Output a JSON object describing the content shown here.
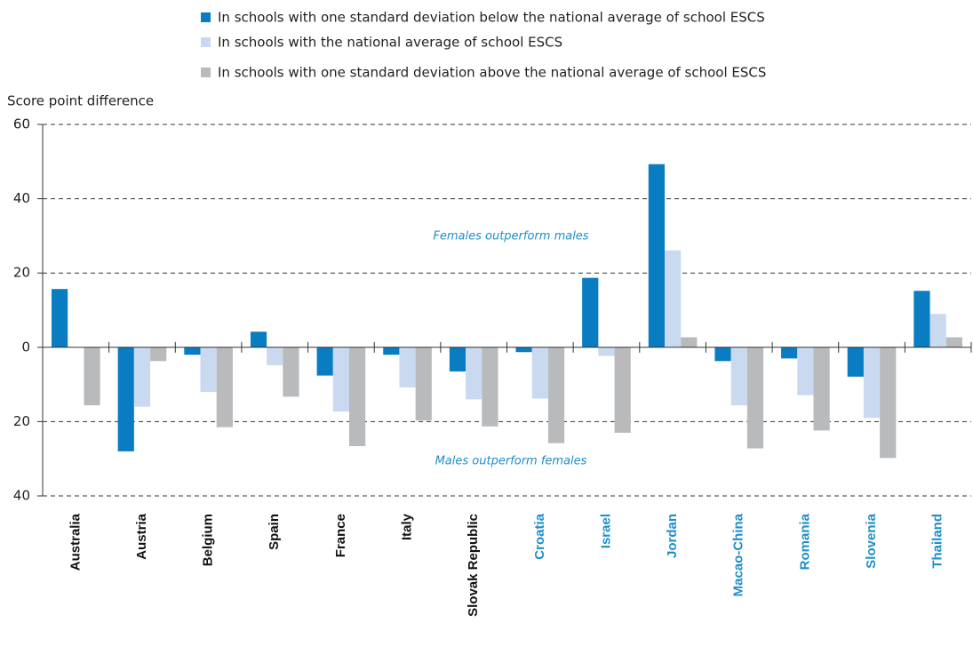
{
  "chart_data": {
    "type": "bar",
    "y_label": "Score point difference",
    "annotations": [
      "Females outperform males",
      "Males outperform females"
    ],
    "categories": [
      "Australia",
      "Austria",
      "Belgium",
      "Spain",
      "France",
      "Italy",
      "Slovak Republic",
      "Croatia",
      "Israel",
      "Jordan",
      "Macao-China",
      "Romania",
      "Slovenia",
      "Thailand"
    ],
    "category_colors": [
      "#111111",
      "#111111",
      "#111111",
      "#111111",
      "#111111",
      "#111111",
      "#111111",
      "#1f8fc8",
      "#1f8fc8",
      "#1f8fc8",
      "#1f8fc8",
      "#1f8fc8",
      "#1f8fc8",
      "#1f8fc8"
    ],
    "series": [
      {
        "name": "In schools with one standard deviation below the national average of school ESCS",
        "color": "#0a7cc1",
        "values": [
          15.7,
          -28,
          -2,
          4.2,
          -7.6,
          -2,
          -6.5,
          -1.3,
          18.7,
          49.3,
          -3.7,
          -3,
          -7.9,
          15.2
        ]
      },
      {
        "name": "In schools with the national average of school ESCS",
        "color": "#c9daf0",
        "values": [
          0,
          -16,
          -12,
          -4.8,
          -17.3,
          -10.8,
          -14,
          -13.8,
          -2.3,
          26.1,
          -15.6,
          -12.9,
          -19,
          9
        ]
      },
      {
        "name": "In schools with one standard deviation above the national average of school ESCS",
        "color": "#b9babc",
        "values": [
          -15.6,
          -3.7,
          -21.5,
          -13.3,
          -26.6,
          -19.7,
          -21.3,
          -25.8,
          -23,
          2.7,
          -27.2,
          -22.4,
          -29.8,
          2.7
        ]
      }
    ],
    "ylim": [
      -40,
      60
    ],
    "yticks": [
      {
        "value": -40,
        "label": "40"
      },
      {
        "value": -20,
        "label": "20"
      },
      0,
      20,
      40,
      60
    ],
    "grid": true
  }
}
